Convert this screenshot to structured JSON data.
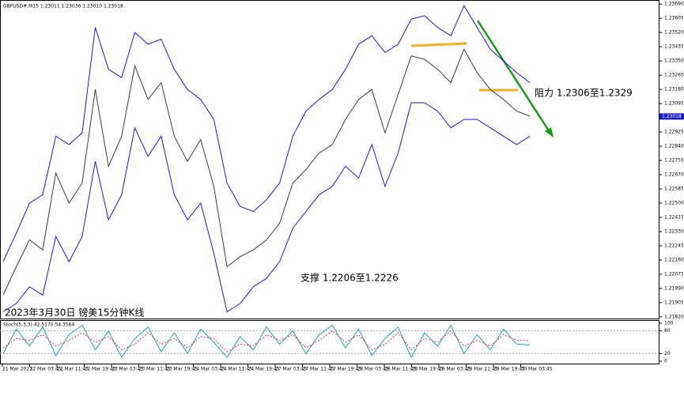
{
  "chart_data": [
    {
      "type": "line",
      "header": "GBPUSD#,M15  1.23011 1.23036 1.23010 1.23018",
      "title": "2023年3月30日 镑美15分钟K线",
      "annotations": [
        "阻力 1.2306至1.2329",
        "支撑 1.2206至1.2226"
      ],
      "time_labels": [
        "21 Mar 2023",
        "22 Mar 03:45",
        "22 Mar 11:45",
        "22 Mar 19:45",
        "23 Mar 03:45",
        "23 Mar 11:45",
        "23 Mar 19:45",
        "24 Mar 03:45",
        "24 Mar 11:45",
        "24 Mar 19:45",
        "27 Mar 03:45",
        "27 Mar 11:45",
        "27 Mar 19:45",
        "28 Mar 03:45",
        "28 Mar 11:45",
        "28 Mar 19:45",
        "29 Mar 03:45",
        "29 Mar 11:45",
        "29 Mar 19:45",
        "30 Mar 03:45"
      ],
      "ylim": [
        1.2181,
        1.237
      ],
      "yticks": [
        {
          "value": 1.2182,
          "label": "1.21820"
        },
        {
          "value": 1.21905,
          "label": "1.21905"
        },
        {
          "value": 1.2199,
          "label": "1.21990"
        },
        {
          "value": 1.22075,
          "label": "1.22075"
        },
        {
          "value": 1.2216,
          "label": "1.22160"
        },
        {
          "value": 1.22245,
          "label": "1.22245"
        },
        {
          "value": 1.2233,
          "label": "1.22330"
        },
        {
          "value": 1.22415,
          "label": "1.22415"
        },
        {
          "value": 1.225,
          "label": "1.22500"
        },
        {
          "value": 1.22585,
          "label": "1.22585"
        },
        {
          "value": 1.2267,
          "label": "1.22670"
        },
        {
          "value": 1.22755,
          "label": "1.22755"
        },
        {
          "value": 1.2284,
          "label": "1.22840"
        },
        {
          "value": 1.22925,
          "label": "1.22925"
        },
        {
          "value": 1.23095,
          "label": "1.23095"
        },
        {
          "value": 1.2318,
          "label": "1.23180"
        },
        {
          "value": 1.23265,
          "label": "1.23265"
        },
        {
          "value": 1.2335,
          "label": "1.23350"
        },
        {
          "value": 1.23435,
          "label": "1.23435"
        },
        {
          "value": 1.2352,
          "label": "1.23520"
        },
        {
          "value": 1.23605,
          "label": "1.23605"
        },
        {
          "value": 1.2369,
          "label": "1.23690"
        }
      ],
      "last_price": {
        "value": 1.23018,
        "label": "1.23018"
      },
      "series": [
        {
          "name": "Close",
          "color": "#3a3a3a",
          "values": [
            1.2195,
            1.2212,
            1.2228,
            1.2222,
            1.2268,
            1.225,
            1.2262,
            1.2318,
            1.2272,
            1.229,
            1.2332,
            1.2312,
            1.2322,
            1.229,
            1.2275,
            1.2288,
            1.226,
            1.2212,
            1.2218,
            1.2222,
            1.2228,
            1.2238,
            1.2262,
            1.227,
            1.228,
            1.2285,
            1.23,
            1.2312,
            1.2318,
            1.2292,
            1.2315,
            1.2338,
            1.2336,
            1.233,
            1.2322,
            1.2342,
            1.2328,
            1.2318,
            1.2312,
            1.2305,
            1.2302
          ]
        },
        {
          "name": "Upper",
          "color": "#1a1acd",
          "values": [
            1.2215,
            1.2232,
            1.225,
            1.2255,
            1.229,
            1.2285,
            1.2292,
            1.2355,
            1.233,
            1.2325,
            1.2352,
            1.2345,
            1.2348,
            1.233,
            1.2318,
            1.2312,
            1.23,
            1.2262,
            1.2248,
            1.2245,
            1.2252,
            1.2262,
            1.229,
            1.2305,
            1.2312,
            1.2318,
            1.233,
            1.2345,
            1.235,
            1.234,
            1.2345,
            1.236,
            1.2362,
            1.2355,
            1.235,
            1.2368,
            1.2355,
            1.2342,
            1.2335,
            1.2328,
            1.2322
          ]
        },
        {
          "name": "Lower",
          "color": "#1a1acd",
          "values": [
            1.2185,
            1.219,
            1.22,
            1.2195,
            1.223,
            1.2215,
            1.223,
            1.2275,
            1.224,
            1.2255,
            1.2295,
            1.2278,
            1.229,
            1.2255,
            1.224,
            1.225,
            1.222,
            1.2185,
            1.219,
            1.22,
            1.2205,
            1.2215,
            1.2235,
            1.2245,
            1.2255,
            1.226,
            1.2272,
            1.2265,
            1.2285,
            1.226,
            1.228,
            1.231,
            1.231,
            1.2305,
            1.2295,
            1.23,
            1.23,
            1.2295,
            1.229,
            1.2285,
            1.229
          ]
        }
      ]
    },
    {
      "type": "line",
      "title": "Stoch(5,3,3) 42.5170 54.3564",
      "ylim": [
        0,
        100
      ],
      "yticks": [
        0,
        20,
        80,
        100
      ],
      "series": [
        {
          "name": "K",
          "color": "#20a0b0",
          "values": [
            20,
            85,
            40,
            90,
            15,
            70,
            95,
            30,
            80,
            10,
            60,
            90,
            25,
            75,
            20,
            85,
            50,
            10,
            65,
            30,
            90,
            45,
            80,
            20,
            70,
            95,
            35,
            85,
            15,
            60,
            90,
            10,
            75,
            40,
            95,
            20,
            70,
            30,
            85,
            45,
            43
          ]
        },
        {
          "name": "D",
          "color": "#e03030",
          "values": [
            35,
            60,
            55,
            70,
            40,
            55,
            75,
            50,
            65,
            30,
            45,
            75,
            45,
            60,
            35,
            65,
            60,
            25,
            45,
            40,
            70,
            55,
            70,
            35,
            55,
            80,
            50,
            70,
            30,
            45,
            75,
            30,
            60,
            50,
            80,
            40,
            55,
            40,
            70,
            55,
            54
          ]
        }
      ]
    }
  ]
}
